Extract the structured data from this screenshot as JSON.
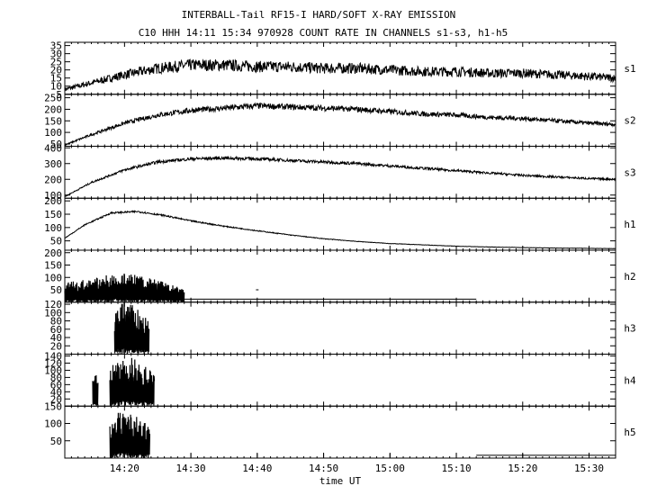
{
  "title": "INTERBALL-Tail RF15-I HARD/SOFT X-RAY EMISSION",
  "subtitle": "C10 HHH 14:11 15:34 970928  COUNT RATE IN CHANNELS s1-s3, h1-h5",
  "chart_data": {
    "type": "line",
    "xlabel": "time UT",
    "x_range_minutes": [
      "14:11",
      "15:34"
    ],
    "x_ticks": [
      "14:20",
      "14:30",
      "14:40",
      "14:50",
      "15:00",
      "15:10",
      "15:20",
      "15:30"
    ],
    "panels": [
      {
        "name": "s1",
        "ylim": [
          5,
          37
        ],
        "y_ticks": [
          5,
          10,
          15,
          20,
          25,
          30,
          35
        ],
        "series": [
          {
            "x": [
              "14:11",
              "14:15",
              "14:20",
              "14:25",
              "14:30",
              "14:35",
              "14:40",
              "14:45",
              "14:50",
              "14:55",
              "15:00",
              "15:05",
              "15:10",
              "15:15",
              "15:20",
              "15:25",
              "15:30",
              "15:34"
            ],
            "values": [
              8,
              12,
              17,
              21,
              23,
              23,
              22,
              22,
              21,
              21,
              20,
              19,
              19,
              18,
              18,
              17,
              16,
              15
            ]
          }
        ]
      },
      {
        "name": "s2",
        "ylim": [
          40,
          265
        ],
        "y_ticks": [
          50,
          100,
          150,
          200,
          250
        ],
        "series": [
          {
            "x": [
              "14:11",
              "14:15",
              "14:20",
              "14:25",
              "14:30",
              "14:35",
              "14:40",
              "14:45",
              "14:50",
              "14:55",
              "15:00",
              "15:05",
              "15:10",
              "15:15",
              "15:20",
              "15:25",
              "15:30",
              "15:34"
            ],
            "values": [
              45,
              90,
              140,
              175,
              195,
              205,
              215,
              210,
              205,
              200,
              190,
              180,
              175,
              165,
              160,
              150,
              140,
              135
            ]
          }
        ]
      },
      {
        "name": "s3",
        "ylim": [
          80,
          410
        ],
        "y_ticks": [
          100,
          200,
          300,
          400
        ],
        "series": [
          {
            "x": [
              "14:11",
              "14:15",
              "14:20",
              "14:25",
              "14:30",
              "14:35",
              "14:40",
              "14:45",
              "14:50",
              "14:55",
              "15:00",
              "15:05",
              "15:10",
              "15:15",
              "15:20",
              "15:25",
              "15:30",
              "15:34"
            ],
            "values": [
              90,
              180,
              260,
              310,
              330,
              335,
              330,
              320,
              310,
              300,
              285,
              270,
              255,
              240,
              225,
              215,
              205,
              200
            ]
          }
        ]
      },
      {
        "name": "h1",
        "ylim": [
          15,
          210
        ],
        "y_ticks": [
          50,
          100,
          150,
          200
        ],
        "series": [
          {
            "x": [
              "14:11",
              "14:14",
              "14:18",
              "14:22",
              "14:26",
              "14:30",
              "14:35",
              "14:40",
              "14:45",
              "14:50",
              "14:55",
              "15:00",
              "15:05",
              "15:10",
              "15:15",
              "15:20",
              "15:25",
              "15:30",
              "15:34"
            ],
            "values": [
              60,
              110,
              155,
              160,
              145,
              125,
              105,
              88,
              72,
              58,
              48,
              40,
              35,
              30,
              27,
              25,
              23,
              22,
              21
            ]
          }
        ]
      },
      {
        "name": "h2",
        "ylim": [
          0,
          210
        ],
        "y_ticks": [
          50,
          100,
          150,
          200
        ],
        "series": [
          {
            "x": [
              "14:11",
              "14:15",
              "14:20",
              "14:25",
              "14:29"
            ],
            "values": [
              60,
              75,
              95,
              70,
              40
            ]
          },
          {
            "x": [
              "14:29",
              "15:13"
            ],
            "values": [
              12,
              12
            ]
          },
          {
            "x": [
              "14:39.8",
              "14:40.2"
            ],
            "values": [
              50,
              50
            ]
          }
        ]
      },
      {
        "name": "h3",
        "ylim": [
          0,
          125
        ],
        "y_ticks": [
          20,
          40,
          60,
          80,
          100,
          120
        ],
        "series": [
          {
            "x": [
              "14:18.5",
              "14:20",
              "14:22",
              "14:23.7"
            ],
            "values": [
              80,
              100,
              85,
              60
            ]
          }
        ]
      },
      {
        "name": "h4",
        "ylim": [
          0,
          145
        ],
        "y_ticks": [
          20,
          40,
          60,
          80,
          100,
          120,
          140
        ],
        "series": [
          {
            "x": [
              "14:15.2",
              "14:16"
            ],
            "values": [
              70,
              65
            ]
          },
          {
            "x": [
              "14:17.8",
              "14:20",
              "14:22",
              "14:24.5"
            ],
            "values": [
              90,
              110,
              100,
              70
            ]
          }
        ]
      },
      {
        "name": "h5",
        "ylim": [
          0,
          150
        ],
        "y_ticks": [
          50,
          100,
          150
        ],
        "series": [
          {
            "x": [
              "14:17.8",
              "14:20",
              "14:22",
              "14:23.8"
            ],
            "values": [
              95,
              110,
              90,
              70
            ]
          },
          {
            "x": [
              "15:13",
              "15:34"
            ],
            "values": [
              8,
              8
            ]
          }
        ]
      }
    ]
  }
}
